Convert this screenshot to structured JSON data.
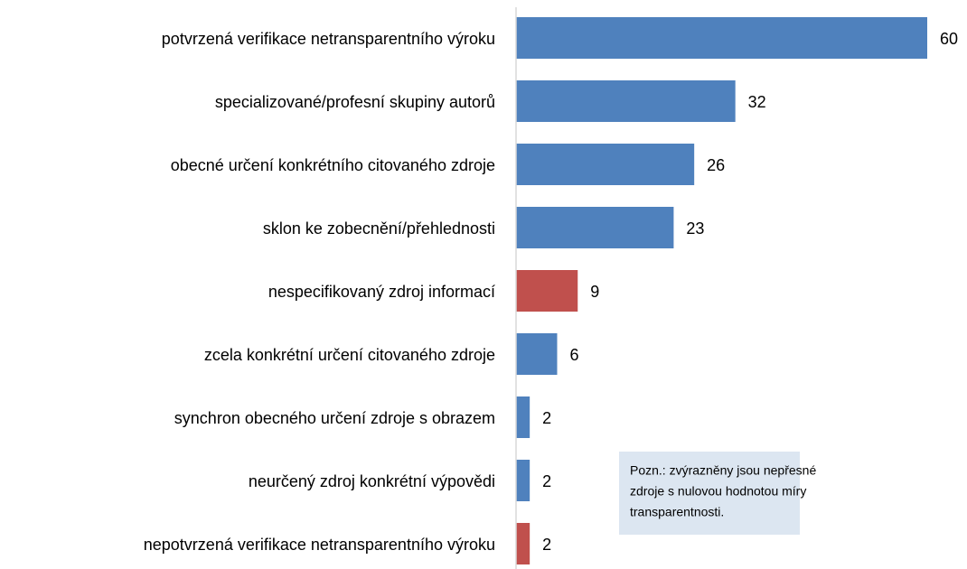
{
  "chart_data": {
    "type": "bar",
    "orientation": "horizontal",
    "categories": [
      "potvrzená verifikace netransparentního výroku",
      "specializované/profesní skupiny autorů",
      "obecné určení konkrétního citovaného zdroje",
      "sklon ke zobecnění/přehlednosti",
      "nespecifikovaný zdroj informací",
      "zcela konkrétní určení citovaného zdroje",
      "synchron obecného určení zdroje s obrazem",
      "neurčený zdroj konkrétní výpovědi",
      "nepotvrzená verifikace netransparentního výroku"
    ],
    "values": [
      60,
      32,
      26,
      23,
      9,
      6,
      2,
      2,
      2
    ],
    "colors": [
      "#4f81bd",
      "#4f81bd",
      "#4f81bd",
      "#4f81bd",
      "#c0504d",
      "#4f81bd",
      "#4f81bd",
      "#4f81bd",
      "#c0504d"
    ],
    "annotation": [
      "Pozn.: zvýrazněny jsou nepřesné",
      "zdroje s nulovou hodnotou míry",
      "transparentnosti."
    ]
  }
}
